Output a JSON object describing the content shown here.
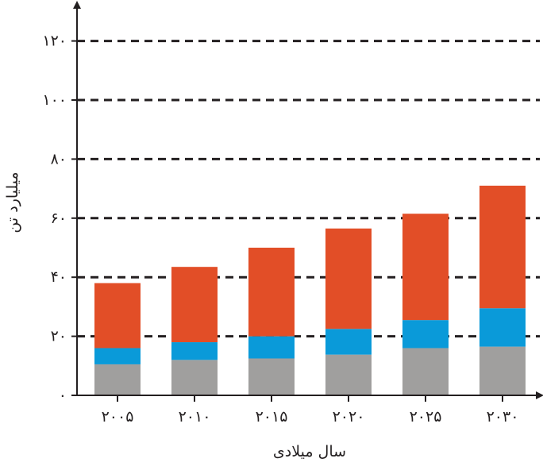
{
  "chart_data": {
    "type": "bar",
    "stacked": true,
    "xlabel": "سال میلادی",
    "ylabel": "میلیارد تن",
    "categories": [
      "۲۰۰۵",
      "۲۰۱۰",
      "۲۰۱۵",
      "۲۰۲۰",
      "۲۰۲۵",
      "۲۰۳۰"
    ],
    "y_ticks": [
      0,
      20,
      40,
      60,
      80,
      100,
      120
    ],
    "y_tick_labels": [
      "۰",
      "۲۰",
      "۴۰",
      "۶۰",
      "۸۰",
      "۱۰۰",
      "۱۲۰"
    ],
    "ylim": [
      0,
      132
    ],
    "grid": "horizontal dashed",
    "series": [
      {
        "color": "#a09f9e",
        "values": [
          10.5,
          12,
          12.5,
          13.8,
          16,
          16.5
        ]
      },
      {
        "color": "#0a9ad9",
        "values": [
          5.5,
          6,
          7.5,
          8.7,
          9.5,
          13
        ]
      },
      {
        "color": "#e24e27",
        "values": [
          22,
          25.5,
          30,
          34,
          36,
          41.5
        ]
      }
    ],
    "colors": {
      "axis": "#231f20",
      "grid": "#231f20",
      "background": "#ffffff"
    }
  }
}
